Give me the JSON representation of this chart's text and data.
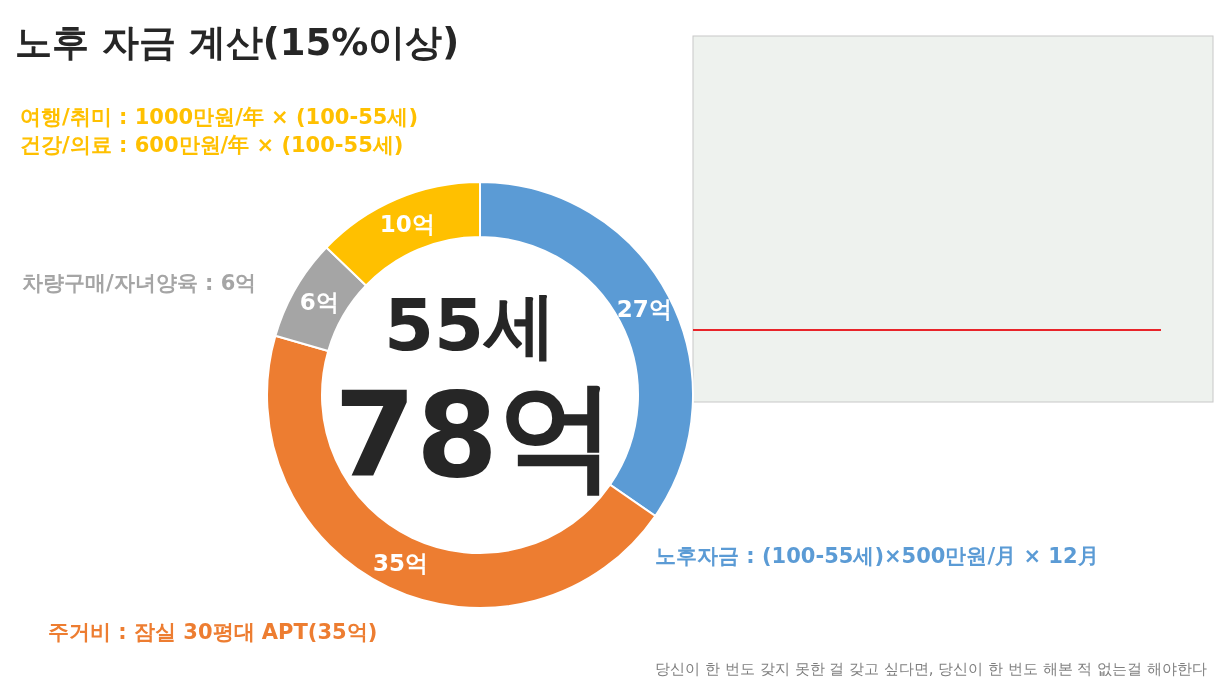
{
  "chart_data": {
    "type": "donut",
    "title": "노후 자금 계산(15%이상)",
    "categories": [
      "노후자금 : (100-55세)×500만원/月 × 12月",
      "주거비 : 잠실 30평대 APT(35억)",
      "차량구매/자녀양육 : 6억",
      "여행/취미 : 1000만원/年 × (100-55세)\n건강/의료 : 600만원/年 × (100-55세)"
    ],
    "values": [
      27,
      35,
      6,
      10
    ],
    "colors": [
      "#5b9bd5",
      "#ed7d31",
      "#a5a5a5",
      "#ffc000"
    ],
    "value_labels": [
      "27억",
      "35억",
      "6억",
      "10억"
    ],
    "annotations": [
      "55세",
      "78억",
      "당신이 한 번도 갖지 못한 걸 갖고 싶다면, 당신이 한 번도 해본 적 없는걸 해야한다"
    ]
  }
}
